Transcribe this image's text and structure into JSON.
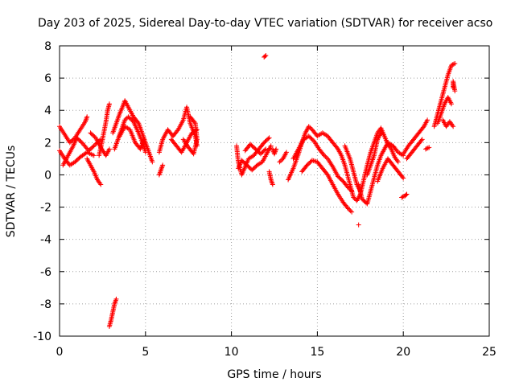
{
  "chart_data": {
    "type": "scatter",
    "title": "Day 203 of 2025, Sidereal Day-to-day VTEC variation (SDTVAR) for receiver acso",
    "xlabel": "GPS time / hours",
    "ylabel": "SDTVAR / TECUs",
    "xlim": [
      0,
      25
    ],
    "ylim": [
      -10,
      8
    ],
    "x_ticks": [
      0,
      5,
      10,
      15,
      20,
      25
    ],
    "y_ticks": [
      -10,
      -8,
      -6,
      -4,
      -2,
      0,
      2,
      4,
      6,
      8
    ],
    "x_tick_labels": [
      "0",
      "5",
      "10",
      "15",
      "20",
      "25"
    ],
    "y_tick_labels": [
      "-10",
      "-8",
      "-6",
      "-4",
      "-2",
      "0",
      "2",
      "4",
      "6",
      "8"
    ],
    "grid": true,
    "marker": "+",
    "color": "#ff0000",
    "series": [
      {
        "name": "SDTVAR",
        "segments": [
          [
            [
              0.0,
              3.0
            ],
            [
              0.3,
              2.5
            ],
            [
              0.6,
              2.0
            ],
            [
              0.9,
              2.3
            ],
            [
              1.2,
              2.8
            ],
            [
              1.5,
              3.3
            ],
            [
              1.6,
              3.6
            ]
          ],
          [
            [
              0.0,
              1.5
            ],
            [
              0.3,
              1.0
            ],
            [
              0.6,
              0.6
            ],
            [
              0.9,
              0.8
            ],
            [
              1.2,
              1.1
            ],
            [
              1.6,
              1.4
            ],
            [
              2.0,
              1.2
            ]
          ],
          [
            [
              0.2,
              0.6
            ],
            [
              0.5,
              1.2
            ],
            [
              0.8,
              1.8
            ],
            [
              1.0,
              2.3
            ],
            [
              1.3,
              2.0
            ],
            [
              1.7,
              1.5
            ],
            [
              2.0,
              1.8
            ],
            [
              2.4,
              2.2
            ]
          ],
          [
            [
              1.6,
              1.0
            ],
            [
              1.8,
              0.6
            ],
            [
              2.0,
              0.2
            ],
            [
              2.2,
              -0.3
            ],
            [
              2.4,
              -0.6
            ]
          ],
          [
            [
              1.8,
              2.6
            ],
            [
              2.1,
              2.3
            ],
            [
              2.4,
              1.7
            ],
            [
              2.7,
              1.2
            ],
            [
              2.9,
              1.6
            ]
          ],
          [
            [
              2.3,
              1.2
            ],
            [
              2.5,
              2.2
            ],
            [
              2.7,
              3.3
            ],
            [
              2.8,
              4.0
            ],
            [
              2.9,
              4.4
            ]
          ],
          [
            [
              2.9,
              -9.4
            ],
            [
              3.0,
              -9.0
            ],
            [
              3.1,
              -8.5
            ],
            [
              3.2,
              -8.0
            ],
            [
              3.3,
              -7.7
            ]
          ],
          [
            [
              3.1,
              2.6
            ],
            [
              3.3,
              3.2
            ],
            [
              3.5,
              3.8
            ],
            [
              3.7,
              4.3
            ],
            [
              3.8,
              4.6
            ],
            [
              4.0,
              4.2
            ],
            [
              4.3,
              3.6
            ],
            [
              4.6,
              3.2
            ],
            [
              4.8,
              2.6
            ],
            [
              5.0,
              2.0
            ],
            [
              5.2,
              1.4
            ],
            [
              5.4,
              0.8
            ]
          ],
          [
            [
              3.2,
              1.6
            ],
            [
              3.4,
              2.2
            ],
            [
              3.6,
              2.8
            ],
            [
              3.8,
              3.4
            ],
            [
              4.0,
              3.6
            ],
            [
              4.3,
              3.3
            ],
            [
              4.6,
              2.6
            ],
            [
              4.9,
              1.8
            ],
            [
              5.0,
              1.4
            ]
          ],
          [
            [
              3.5,
              2.4
            ],
            [
              3.8,
              3.0
            ],
            [
              4.1,
              2.8
            ],
            [
              4.4,
              2.0
            ],
            [
              4.7,
              1.6
            ],
            [
              4.9,
              2.2
            ]
          ],
          [
            [
              5.8,
              1.4
            ],
            [
              6.0,
              2.2
            ],
            [
              6.3,
              2.8
            ],
            [
              6.6,
              2.4
            ],
            [
              6.9,
              2.8
            ],
            [
              7.2,
              3.4
            ],
            [
              7.4,
              4.2
            ],
            [
              7.6,
              3.2
            ],
            [
              7.9,
              2.4
            ],
            [
              8.0,
              1.8
            ]
          ],
          [
            [
              5.8,
              0.0
            ],
            [
              5.9,
              0.3
            ],
            [
              6.0,
              0.6
            ]
          ],
          [
            [
              6.5,
              2.2
            ],
            [
              6.8,
              1.8
            ],
            [
              7.1,
              1.4
            ],
            [
              7.4,
              2.0
            ],
            [
              7.7,
              2.6
            ],
            [
              8.0,
              2.8
            ]
          ],
          [
            [
              7.2,
              2.2
            ],
            [
              7.5,
              1.7
            ],
            [
              7.8,
              1.3
            ],
            [
              8.0,
              2.2
            ],
            [
              7.9,
              3.2
            ],
            [
              7.6,
              3.6
            ]
          ],
          [
            [
              10.3,
              1.8
            ],
            [
              10.4,
              0.8
            ],
            [
              10.6,
              0.0
            ],
            [
              10.8,
              0.5
            ],
            [
              11.0,
              1.0
            ],
            [
              11.3,
              1.2
            ],
            [
              11.6,
              1.6
            ],
            [
              11.9,
              2.0
            ],
            [
              12.2,
              2.3
            ]
          ],
          [
            [
              10.4,
              0.4
            ],
            [
              10.6,
              0.9
            ],
            [
              10.9,
              0.6
            ],
            [
              11.2,
              0.3
            ],
            [
              11.5,
              0.6
            ],
            [
              11.8,
              0.8
            ],
            [
              12.1,
              1.4
            ],
            [
              12.3,
              1.8
            ]
          ],
          [
            [
              10.8,
              1.5
            ],
            [
              11.1,
              1.9
            ],
            [
              11.4,
              1.6
            ],
            [
              11.7,
              1.3
            ],
            [
              12.0,
              1.6
            ]
          ],
          [
            [
              11.9,
              7.3
            ],
            [
              12.0,
              7.4
            ]
          ],
          [
            [
              12.2,
              0.2
            ],
            [
              12.3,
              -0.3
            ],
            [
              12.4,
              -0.6
            ]
          ],
          [
            [
              12.4,
              1.6
            ],
            [
              12.5,
              1.3
            ],
            [
              12.6,
              1.6
            ]
          ],
          [
            [
              12.8,
              0.8
            ],
            [
              13.0,
              1.0
            ],
            [
              13.2,
              1.4
            ]
          ],
          [
            [
              13.3,
              -0.3
            ],
            [
              13.6,
              0.4
            ],
            [
              13.9,
              1.3
            ],
            [
              14.1,
              2.0
            ],
            [
              14.3,
              2.6
            ],
            [
              14.5,
              3.0
            ],
            [
              14.7,
              2.8
            ],
            [
              15.0,
              2.4
            ],
            [
              15.3,
              2.6
            ],
            [
              15.6,
              2.4
            ],
            [
              15.9,
              2.0
            ],
            [
              16.2,
              1.6
            ],
            [
              16.4,
              1.2
            ],
            [
              16.6,
              0.6
            ],
            [
              16.9,
              -0.6
            ],
            [
              17.1,
              -1.4
            ],
            [
              17.3,
              -1.6
            ],
            [
              17.5,
              -1.2
            ],
            [
              17.7,
              -0.3
            ],
            [
              17.9,
              0.6
            ],
            [
              18.1,
              1.4
            ],
            [
              18.3,
              2.0
            ],
            [
              18.5,
              2.6
            ],
            [
              18.7,
              2.9
            ],
            [
              18.9,
              2.4
            ],
            [
              19.1,
              1.9
            ],
            [
              19.3,
              1.6
            ],
            [
              19.5,
              1.1
            ],
            [
              19.7,
              0.8
            ]
          ],
          [
            [
              13.6,
              1.0
            ],
            [
              13.9,
              1.6
            ],
            [
              14.2,
              2.2
            ],
            [
              14.5,
              2.4
            ],
            [
              14.8,
              2.1
            ],
            [
              15.1,
              1.6
            ],
            [
              15.4,
              1.2
            ],
            [
              15.6,
              1.0
            ],
            [
              15.9,
              0.5
            ],
            [
              16.2,
              -0.1
            ],
            [
              16.5,
              -0.4
            ],
            [
              16.8,
              -0.8
            ],
            [
              17.0,
              -1.0
            ]
          ],
          [
            [
              14.1,
              0.2
            ],
            [
              14.4,
              0.6
            ],
            [
              14.7,
              0.9
            ],
            [
              15.0,
              0.8
            ],
            [
              15.3,
              0.4
            ],
            [
              15.6,
              0.0
            ],
            [
              15.9,
              -0.6
            ],
            [
              16.2,
              -1.2
            ],
            [
              16.5,
              -1.7
            ],
            [
              16.8,
              -2.1
            ],
            [
              17.0,
              -2.3
            ]
          ],
          [
            [
              16.6,
              1.8
            ],
            [
              16.9,
              1.0
            ],
            [
              17.1,
              0.2
            ],
            [
              17.3,
              -0.6
            ],
            [
              17.5,
              -1.0
            ]
          ],
          [
            [
              17.4,
              -3.1
            ]
          ],
          [
            [
              17.4,
              -0.6
            ],
            [
              17.6,
              -1.5
            ],
            [
              17.9,
              -1.8
            ],
            [
              18.1,
              -1.0
            ],
            [
              18.3,
              -0.2
            ],
            [
              18.5,
              0.6
            ],
            [
              18.7,
              1.2
            ],
            [
              18.9,
              1.6
            ],
            [
              19.1,
              2.0
            ],
            [
              19.4,
              1.8
            ],
            [
              19.7,
              1.4
            ],
            [
              20.0,
              1.2
            ]
          ],
          [
            [
              17.9,
              0.0
            ],
            [
              18.1,
              0.6
            ],
            [
              18.3,
              1.2
            ],
            [
              18.5,
              2.2
            ],
            [
              18.7,
              2.6
            ]
          ],
          [
            [
              18.5,
              -0.4
            ],
            [
              18.8,
              0.4
            ],
            [
              19.1,
              1.0
            ],
            [
              19.4,
              0.6
            ],
            [
              19.7,
              0.2
            ],
            [
              20.0,
              -0.2
            ]
          ],
          [
            [
              19.9,
              -1.4
            ],
            [
              20.1,
              -1.3
            ],
            [
              20.2,
              -1.2
            ]
          ],
          [
            [
              20.0,
              1.3
            ],
            [
              20.3,
              1.8
            ],
            [
              20.6,
              2.2
            ],
            [
              20.9,
              2.6
            ],
            [
              21.2,
              3.0
            ],
            [
              21.4,
              3.4
            ]
          ],
          [
            [
              20.2,
              1.0
            ],
            [
              20.5,
              1.4
            ],
            [
              20.8,
              1.8
            ],
            [
              21.1,
              2.2
            ]
          ],
          [
            [
              21.3,
              1.6
            ],
            [
              21.5,
              1.7
            ]
          ],
          [
            [
              21.8,
              3.0
            ],
            [
              22.0,
              3.8
            ],
            [
              22.2,
              4.6
            ],
            [
              22.4,
              5.4
            ],
            [
              22.6,
              6.2
            ],
            [
              22.8,
              6.8
            ],
            [
              23.0,
              6.9
            ]
          ],
          [
            [
              22.0,
              3.2
            ],
            [
              22.2,
              3.8
            ],
            [
              22.4,
              4.4
            ],
            [
              22.6,
              4.8
            ],
            [
              22.8,
              4.4
            ]
          ],
          [
            [
              22.3,
              3.4
            ],
            [
              22.5,
              3.0
            ],
            [
              22.7,
              3.3
            ],
            [
              22.9,
              3.0
            ]
          ],
          [
            [
              22.9,
              5.4
            ],
            [
              22.9,
              5.8
            ],
            [
              23.0,
              5.2
            ]
          ]
        ]
      }
    ]
  }
}
